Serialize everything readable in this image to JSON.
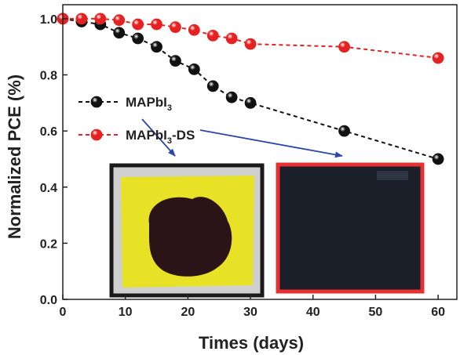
{
  "chart_data": {
    "type": "line",
    "xlabel": "Times (days)",
    "ylabel": "Normalized PCE (%)",
    "xlim": [
      0,
      63
    ],
    "ylim": [
      0,
      1.05
    ],
    "xticks": [
      "0",
      "10",
      "20",
      "30",
      "40",
      "50",
      "60"
    ],
    "yticks": [
      "0.0",
      "0.2",
      "0.4",
      "0.6",
      "0.8",
      "1.0"
    ],
    "legend_position": "center-left",
    "series": [
      {
        "name": "MAPbI3",
        "legend_main": "MAPbI",
        "legend_sub": "3",
        "legend_tail": "",
        "color": "#111111",
        "x": [
          0,
          3,
          6,
          9,
          12,
          15,
          18,
          21,
          24,
          27,
          30,
          45,
          60
        ],
        "y": [
          1.0,
          0.99,
          0.98,
          0.95,
          0.93,
          0.9,
          0.85,
          0.82,
          0.76,
          0.72,
          0.7,
          0.6,
          0.5
        ]
      },
      {
        "name": "MAPbI3-DS",
        "legend_main": "MAPbI",
        "legend_sub": "3",
        "legend_tail": "-DS",
        "color": "#e52222",
        "x": [
          0,
          3,
          6,
          9,
          12,
          15,
          18,
          21,
          24,
          27,
          30,
          45,
          60
        ],
        "y": [
          1.0,
          1.0,
          1.0,
          0.995,
          0.98,
          0.98,
          0.97,
          0.96,
          0.94,
          0.93,
          0.91,
          0.9,
          0.86
        ]
      }
    ],
    "insets": [
      {
        "name": "degraded-film-photo",
        "frame_color": "#1a1a1a",
        "film_color": "#e8e226",
        "spot_color": "#2a1418"
      },
      {
        "name": "stable-film-photo",
        "frame_color": "#e83030",
        "film_color": "#1b1f2a"
      }
    ],
    "arrow_color": "#2c47a8"
  }
}
